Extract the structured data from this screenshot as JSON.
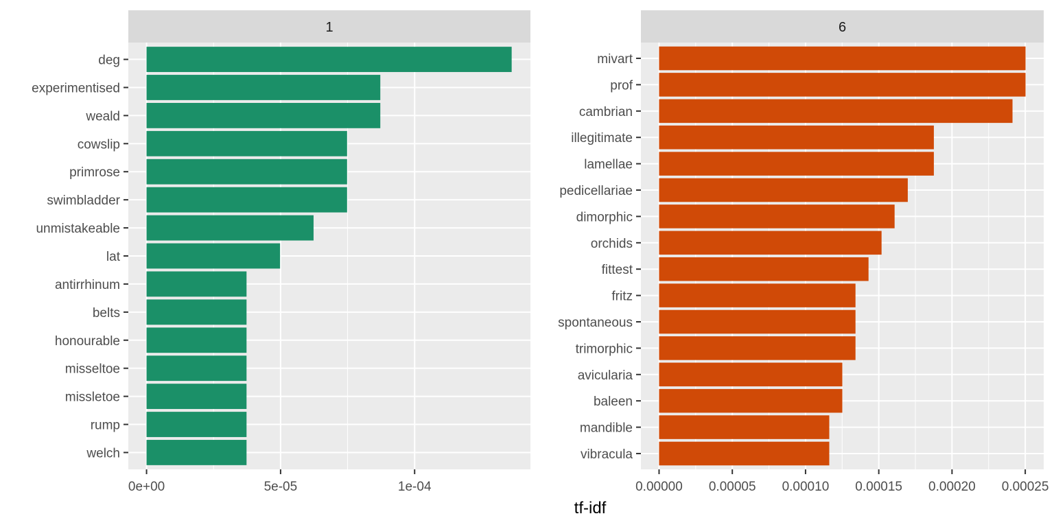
{
  "chart_data": {
    "type": "bar",
    "orientation": "horizontal",
    "xlabel": "tf-idf",
    "ylabel": "",
    "panels": [
      {
        "strip_label": "1",
        "color": "#1b9068",
        "xlim": [
          -6.8e-06,
          0.0001432
        ],
        "x_ticks": [
          0,
          5e-05,
          0.0001
        ],
        "x_tick_labels": [
          "0e+00",
          "5e-05",
          "1e-04"
        ],
        "categories": [
          "deg",
          "experimentised",
          "weald",
          "cowslip",
          "primrose",
          "swimbladder",
          "unmistakeable",
          "lat",
          "antirrhinum",
          "belts",
          "honourable",
          "misseltoe",
          "missletoe",
          "rump",
          "welch"
        ],
        "values": [
          0.0001362,
          8.72e-05,
          8.72e-05,
          7.48e-05,
          7.48e-05,
          7.48e-05,
          6.23e-05,
          4.98e-05,
          3.73e-05,
          3.73e-05,
          3.73e-05,
          3.73e-05,
          3.73e-05,
          3.73e-05,
          3.73e-05
        ]
      },
      {
        "strip_label": "6",
        "color": "#d04a07",
        "xlim": [
          -1.24e-05,
          0.0002626
        ],
        "x_ticks": [
          0,
          5e-05,
          0.0001,
          0.00015,
          0.0002,
          0.00025
        ],
        "x_tick_labels": [
          "0.00000",
          "0.00005",
          "0.00010",
          "0.00015",
          "0.00020",
          "0.00025"
        ],
        "categories": [
          "mivart",
          "prof",
          "cambrian",
          "illegitimate",
          "lamellae",
          "pedicellariae",
          "dimorphic",
          "orchids",
          "fittest",
          "fritz",
          "spontaneous",
          "trimorphic",
          "avicularia",
          "baleen",
          "mandible",
          "vibracula"
        ],
        "values": [
          0.0002502,
          0.0002502,
          0.0002413,
          0.0001876,
          0.0001876,
          0.0001698,
          0.0001608,
          0.0001519,
          0.000143,
          0.0001341,
          0.0001341,
          0.0001341,
          0.0001251,
          0.0001251,
          0.0001162,
          0.0001162
        ]
      }
    ]
  }
}
